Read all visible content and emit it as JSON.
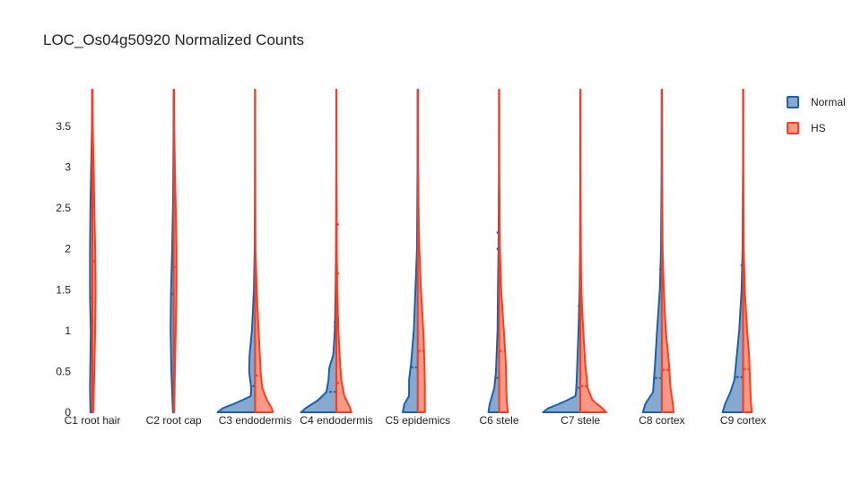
{
  "chart_data": {
    "type": "violin",
    "title": "LOC_Os04g50920 Normalized Counts",
    "xlabel": "",
    "ylabel": "",
    "ylim": [
      0,
      3.95
    ],
    "yticks": [
      "0",
      "0.5",
      "1",
      "1.5",
      "2",
      "2.5",
      "3",
      "3.5"
    ],
    "categories": [
      "C1 root hair",
      "C2 root cap",
      "C3 endodermis",
      "C4 endodermis",
      "C5 epidemics",
      "C6 stele",
      "C7 stele",
      "C8 cortex",
      "C9 cortex"
    ],
    "legend_position": "top-right",
    "series": [
      {
        "name": "Normal",
        "color": "#1f5fa3",
        "fill": "#87a9cf",
        "medians": [
          1.4,
          1.45,
          0.32,
          0.25,
          0.55,
          0.42,
          0.3,
          0.42,
          0.43
        ],
        "dots": [
          [],
          [],
          [
            1.4
          ],
          [
            1.05,
            1.1
          ],
          [],
          [
            2.0,
            2.2
          ],
          [
            1.3
          ],
          [
            1.75
          ],
          [
            1.8
          ]
        ],
        "profiles": [
          [
            [
              0,
              0.05
            ],
            [
              0.3,
              0.06
            ],
            [
              1.0,
              0.04
            ],
            [
              1.4,
              0.06
            ],
            [
              2.0,
              0.06
            ],
            [
              2.5,
              0.05
            ],
            [
              3.0,
              0.03
            ],
            [
              3.5,
              0.01
            ],
            [
              3.95,
              0.008
            ]
          ],
          [
            [
              0,
              0.02
            ],
            [
              0.5,
              0.06
            ],
            [
              1.0,
              0.08
            ],
            [
              1.45,
              0.07
            ],
            [
              2.0,
              0.04
            ],
            [
              2.5,
              0.02
            ],
            [
              3.0,
              0.01
            ],
            [
              3.5,
              0.005
            ],
            [
              3.95,
              0.004
            ]
          ],
          [
            [
              0,
              0.95
            ],
            [
              0.05,
              0.82
            ],
            [
              0.12,
              0.45
            ],
            [
              0.2,
              0.1
            ],
            [
              0.3,
              0.1
            ],
            [
              0.5,
              0.15
            ],
            [
              0.7,
              0.14
            ],
            [
              1.0,
              0.08
            ],
            [
              1.5,
              0.03
            ],
            [
              2.0,
              0.01
            ],
            [
              3.0,
              0.003
            ],
            [
              3.95,
              0.002
            ]
          ],
          [
            [
              0,
              0.9
            ],
            [
              0.05,
              0.78
            ],
            [
              0.15,
              0.46
            ],
            [
              0.25,
              0.25
            ],
            [
              0.4,
              0.2
            ],
            [
              0.55,
              0.18
            ],
            [
              0.7,
              0.08
            ],
            [
              1.0,
              0.04
            ],
            [
              1.5,
              0.02
            ],
            [
              2.0,
              0.01
            ],
            [
              3.0,
              0.003
            ],
            [
              3.95,
              0.002
            ]
          ],
          [
            [
              0,
              0.38
            ],
            [
              0.1,
              0.34
            ],
            [
              0.2,
              0.22
            ],
            [
              0.4,
              0.22
            ],
            [
              0.6,
              0.17
            ],
            [
              1.0,
              0.1
            ],
            [
              1.5,
              0.06
            ],
            [
              2.0,
              0.02
            ],
            [
              3.0,
              0.006
            ],
            [
              3.95,
              0.004
            ]
          ],
          [
            [
              0,
              0.27
            ],
            [
              0.1,
              0.24
            ],
            [
              0.3,
              0.12
            ],
            [
              0.5,
              0.08
            ],
            [
              1.0,
              0.04
            ],
            [
              1.5,
              0.03
            ],
            [
              2.0,
              0.015
            ],
            [
              3.0,
              0.005
            ],
            [
              3.95,
              0.004
            ]
          ],
          [
            [
              0,
              0.95
            ],
            [
              0.05,
              0.82
            ],
            [
              0.12,
              0.45
            ],
            [
              0.2,
              0.12
            ],
            [
              0.35,
              0.1
            ],
            [
              0.6,
              0.08
            ],
            [
              1.0,
              0.05
            ],
            [
              1.5,
              0.02
            ],
            [
              2.0,
              0.01
            ],
            [
              3.0,
              0.003
            ],
            [
              3.95,
              0.002
            ]
          ],
          [
            [
              0,
              0.48
            ],
            [
              0.1,
              0.42
            ],
            [
              0.25,
              0.22
            ],
            [
              0.4,
              0.2
            ],
            [
              0.6,
              0.17
            ],
            [
              1.0,
              0.12
            ],
            [
              1.5,
              0.05
            ],
            [
              2.0,
              0.02
            ],
            [
              3.0,
              0.005
            ],
            [
              3.95,
              0.004
            ]
          ],
          [
            [
              0,
              0.52
            ],
            [
              0.1,
              0.46
            ],
            [
              0.25,
              0.32
            ],
            [
              0.4,
              0.22
            ],
            [
              0.7,
              0.16
            ],
            [
              1.0,
              0.1
            ],
            [
              1.5,
              0.04
            ],
            [
              2.0,
              0.015
            ],
            [
              3.0,
              0.004
            ],
            [
              3.95,
              0.003
            ]
          ]
        ]
      },
      {
        "name": "HS",
        "color": "#ff3b1f",
        "fill": "#fc9986",
        "medians": [
          1.85,
          1.78,
          0.45,
          0.36,
          0.75,
          0.75,
          0.32,
          0.52,
          0.53
        ],
        "dots": [
          [],
          [],
          [],
          [
            1.7,
            2.3
          ],
          [],
          [],
          [
            1.2
          ],
          [],
          []
        ],
        "profiles": [
          [
            [
              0,
              0.02
            ],
            [
              0.5,
              0.05
            ],
            [
              1.0,
              0.07
            ],
            [
              1.5,
              0.08
            ],
            [
              2.0,
              0.07
            ],
            [
              2.5,
              0.05
            ],
            [
              3.0,
              0.03
            ],
            [
              3.5,
              0.01
            ],
            [
              3.95,
              0.006
            ]
          ],
          [
            [
              0,
              0.01
            ],
            [
              0.5,
              0.03
            ],
            [
              1.0,
              0.05
            ],
            [
              1.5,
              0.07
            ],
            [
              2.0,
              0.07
            ],
            [
              2.5,
              0.05
            ],
            [
              3.0,
              0.03
            ],
            [
              3.5,
              0.01
            ],
            [
              3.95,
              0.006
            ]
          ],
          [
            [
              0,
              0.45
            ],
            [
              0.05,
              0.42
            ],
            [
              0.15,
              0.3
            ],
            [
              0.3,
              0.18
            ],
            [
              0.5,
              0.14
            ],
            [
              1.0,
              0.09
            ],
            [
              1.5,
              0.04
            ],
            [
              2.0,
              0.01
            ],
            [
              3.0,
              0.003
            ],
            [
              3.95,
              0.002
            ]
          ],
          [
            [
              0,
              0.38
            ],
            [
              0.05,
              0.35
            ],
            [
              0.2,
              0.2
            ],
            [
              0.4,
              0.12
            ],
            [
              0.7,
              0.08
            ],
            [
              1.0,
              0.05
            ],
            [
              1.5,
              0.02
            ],
            [
              2.0,
              0.01
            ],
            [
              3.0,
              0.003
            ],
            [
              3.95,
              0.002
            ]
          ],
          [
            [
              0,
              0.18
            ],
            [
              0.3,
              0.18
            ],
            [
              0.6,
              0.17
            ],
            [
              1.0,
              0.14
            ],
            [
              1.5,
              0.08
            ],
            [
              2.0,
              0.04
            ],
            [
              2.5,
              0.02
            ],
            [
              3.0,
              0.008
            ],
            [
              3.95,
              0.004
            ]
          ],
          [
            [
              0,
              0.22
            ],
            [
              0.1,
              0.2
            ],
            [
              0.3,
              0.18
            ],
            [
              0.6,
              0.17
            ],
            [
              1.0,
              0.12
            ],
            [
              1.5,
              0.05
            ],
            [
              2.0,
              0.02
            ],
            [
              3.0,
              0.006
            ],
            [
              3.95,
              0.004
            ]
          ],
          [
            [
              0,
              0.65
            ],
            [
              0.05,
              0.55
            ],
            [
              0.15,
              0.3
            ],
            [
              0.3,
              0.18
            ],
            [
              0.6,
              0.12
            ],
            [
              1.0,
              0.07
            ],
            [
              1.5,
              0.02
            ],
            [
              2.0,
              0.01
            ],
            [
              3.0,
              0.003
            ],
            [
              3.95,
              0.002
            ]
          ],
          [
            [
              0,
              0.3
            ],
            [
              0.1,
              0.28
            ],
            [
              0.3,
              0.22
            ],
            [
              0.6,
              0.18
            ],
            [
              1.0,
              0.1
            ],
            [
              1.5,
              0.05
            ],
            [
              2.0,
              0.02
            ],
            [
              3.0,
              0.006
            ],
            [
              3.95,
              0.004
            ]
          ],
          [
            [
              0,
              0.22
            ],
            [
              0.1,
              0.2
            ],
            [
              0.4,
              0.17
            ],
            [
              0.7,
              0.15
            ],
            [
              1.0,
              0.1
            ],
            [
              1.5,
              0.04
            ],
            [
              2.0,
              0.015
            ],
            [
              3.0,
              0.005
            ],
            [
              3.95,
              0.004
            ]
          ]
        ]
      }
    ]
  }
}
